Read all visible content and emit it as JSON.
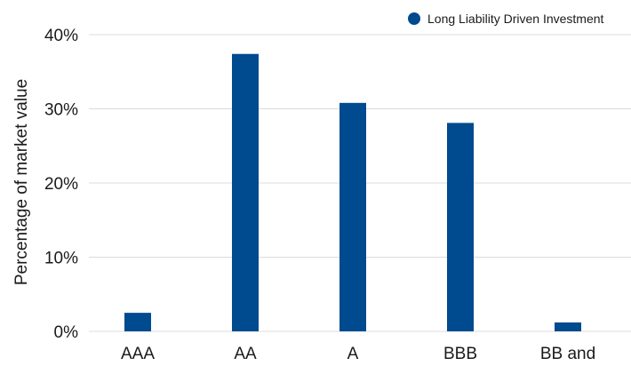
{
  "chart_data": {
    "type": "bar",
    "categories": [
      "AAA",
      "AA",
      "A",
      "BBB",
      "BB and"
    ],
    "series": [
      {
        "name": "Long Liability Driven Investment",
        "values": [
          2.5,
          37.4,
          30.8,
          28.1,
          1.2
        ],
        "color": "#004a8f"
      }
    ],
    "ylabel": "Percentage of market value",
    "ylim": [
      0,
      40
    ],
    "yticks": [
      0,
      10,
      20,
      30,
      40
    ],
    "ytick_labels": [
      "0%",
      "10%",
      "20%",
      "30%",
      "40%"
    ],
    "grid": true,
    "legend_position": "top-right"
  }
}
